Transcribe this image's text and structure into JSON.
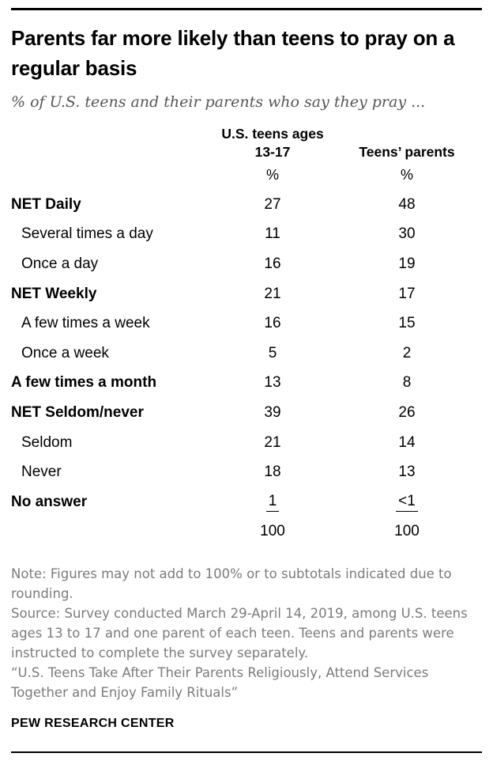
{
  "header": {
    "title": "Parents far more likely than teens to pray on a regular basis",
    "subtitle": "% of U.S. teens and their parents who say they pray ..."
  },
  "chart_data": {
    "type": "table",
    "title": "Parents far more likely than teens to pray on a regular basis",
    "subtitle": "% of U.S. teens and their parents who say they pray ...",
    "columns": [
      "U.S. teens ages 13-17",
      "Teens’ parents"
    ],
    "unit_teens": "%",
    "unit_parents": "%",
    "rows": [
      {
        "label": "NET Daily",
        "teens": "27",
        "parents": "48"
      },
      {
        "label": "Several times a day",
        "teens": "11",
        "parents": "30"
      },
      {
        "label": "Once a day",
        "teens": "16",
        "parents": "19"
      },
      {
        "label": "NET Weekly",
        "teens": "21",
        "parents": "17"
      },
      {
        "label": "A few times a week",
        "teens": "16",
        "parents": "15"
      },
      {
        "label": "Once a week",
        "teens": "5",
        "parents": "2"
      },
      {
        "label": "A few times a month",
        "teens": "13",
        "parents": "8"
      },
      {
        "label": "NET Seldom/never",
        "teens": "39",
        "parents": "26"
      },
      {
        "label": "Seldom",
        "teens": "21",
        "parents": "14"
      },
      {
        "label": "Never",
        "teens": "18",
        "parents": "13"
      },
      {
        "label": "No answer",
        "teens": "1",
        "parents": "<1"
      },
      {
        "label": "",
        "teens": "100",
        "parents": "100"
      }
    ]
  },
  "footer": {
    "notes": [
      "Note: Figures may not add to 100% or to subtotals indicated due to rounding.",
      "Source: Survey conducted March 29-April 14, 2019, among U.S. teens ages 13 to 17 and one parent of each teen. Teens and parents were instructed to complete the survey separately.",
      "“U.S. Teens Take After Their Parents Religiously, Attend Services Together and Enjoy Family Rituals”"
    ],
    "branding": "PEW RESEARCH CENTER"
  },
  "colors": {
    "text": "#000000",
    "subtitle_gray": "#565656",
    "notes_gray": "#7b7b7b",
    "rule_black": "#000000"
  }
}
